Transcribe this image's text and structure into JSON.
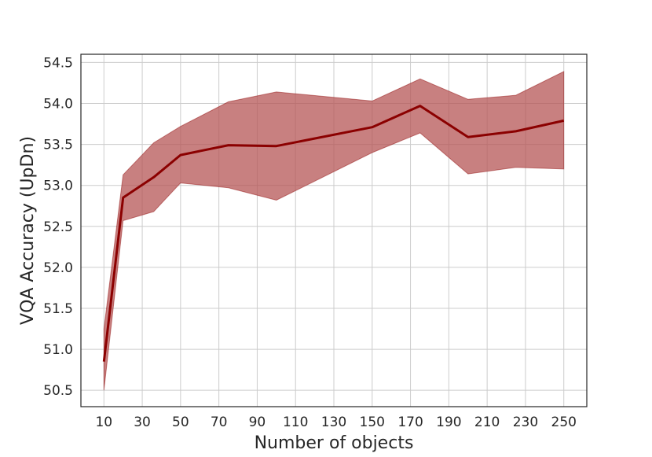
{
  "chart_data": {
    "type": "line",
    "xlabel": "Number of objects",
    "ylabel": "VQA Accuracy (UpDn)",
    "xlim": [
      -2,
      262
    ],
    "ylim": [
      50.3,
      54.6
    ],
    "xticks": [
      10,
      30,
      50,
      70,
      90,
      110,
      130,
      150,
      170,
      190,
      210,
      230,
      250
    ],
    "yticks": [
      50.5,
      51.0,
      51.5,
      52.0,
      52.5,
      53.0,
      53.5,
      54.0,
      54.5
    ],
    "ytick_labels": [
      "50.5",
      "51.0",
      "51.5",
      "52.0",
      "52.5",
      "53.0",
      "53.5",
      "54.0",
      "54.5"
    ],
    "grid": true,
    "colors": {
      "line": "#8b0000",
      "band": "#b55555"
    },
    "series": [
      {
        "x": [
          10,
          20,
          36,
          50,
          75,
          100,
          150,
          175,
          200,
          225,
          250
        ],
        "values": [
          50.85,
          52.85,
          53.1,
          53.37,
          53.49,
          53.48,
          53.71,
          53.97,
          53.59,
          53.66,
          53.79
        ],
        "upper": [
          51.25,
          53.13,
          53.52,
          53.72,
          54.02,
          54.14,
          54.03,
          54.3,
          54.05,
          54.1,
          54.39
        ],
        "lower": [
          50.5,
          52.57,
          52.68,
          53.03,
          52.97,
          52.82,
          53.4,
          53.64,
          53.14,
          53.22,
          53.2
        ]
      }
    ]
  }
}
